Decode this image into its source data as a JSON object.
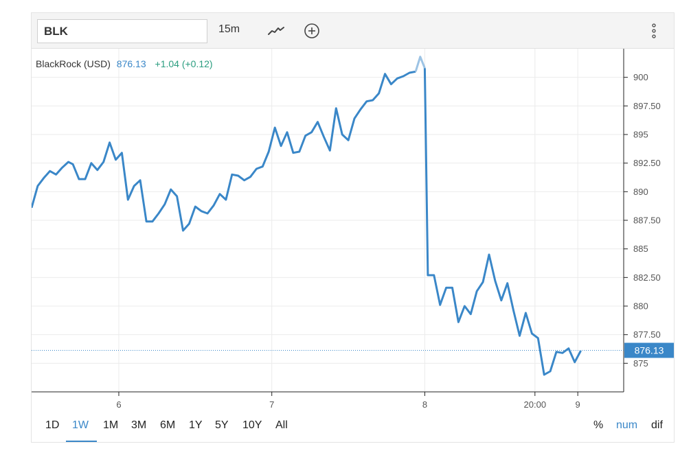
{
  "toolbar": {
    "symbol": "BLK",
    "interval": "15m",
    "line_icon": "line-chart-icon",
    "add_icon": "plus-circle-icon",
    "menu_icon": "vertical-ellipsis-icon"
  },
  "legend": {
    "name": "BlackRock (USD)",
    "price": "876.13",
    "change": "+1.04 (+0.12)"
  },
  "ranges": [
    "1D",
    "1W",
    "1M",
    "3M",
    "6M",
    "1Y",
    "5Y",
    "10Y",
    "All"
  ],
  "active_range": "1W",
  "modes": [
    "%",
    "num",
    "dif"
  ],
  "active_mode": "num",
  "colors": {
    "line": "#3a87c8",
    "line_faded": "#9cc3e4",
    "change_positive": "#2a9d7f",
    "price_tag_bg": "#3a87c8"
  },
  "chart_data": {
    "type": "line",
    "title": "",
    "xlabel": "",
    "ylabel": "",
    "ylim": [
      872.5,
      902.5
    ],
    "yticks": [
      875,
      877.5,
      880,
      882.5,
      885,
      887.5,
      890,
      892.5,
      895,
      897.5,
      900
    ],
    "ytick_labels": [
      "875",
      "877.50",
      "880",
      "882.50",
      "885",
      "887.50",
      "890",
      "892.50",
      "895",
      "897.50",
      "900"
    ],
    "xticks": [
      {
        "x": 6,
        "label": "6"
      },
      {
        "x": 7,
        "label": "7"
      },
      {
        "x": 8,
        "label": "8"
      },
      {
        "x": 8.72,
        "label": "20:00"
      },
      {
        "x": 9,
        "label": "9"
      }
    ],
    "xlim": [
      5.43,
      9.3
    ],
    "grid": true,
    "last_value": 876.13,
    "series": [
      {
        "values": [
          [
            5.43,
            888.6
          ],
          [
            5.47,
            890.5
          ],
          [
            5.51,
            891.2
          ],
          [
            5.55,
            891.8
          ],
          [
            5.59,
            891.5
          ],
          [
            5.63,
            892.1
          ],
          [
            5.67,
            892.6
          ],
          [
            5.7,
            892.4
          ],
          [
            5.74,
            891.1
          ],
          [
            5.78,
            891.1
          ],
          [
            5.82,
            892.5
          ],
          [
            5.86,
            891.9
          ],
          [
            5.9,
            892.6
          ],
          [
            5.94,
            894.3
          ],
          [
            5.98,
            892.8
          ],
          [
            6.02,
            893.4
          ],
          [
            6.06,
            889.3
          ],
          [
            6.1,
            890.5
          ],
          [
            6.14,
            891.0
          ],
          [
            6.18,
            887.4
          ],
          [
            6.22,
            887.4
          ],
          [
            6.26,
            888.1
          ],
          [
            6.3,
            888.9
          ],
          [
            6.34,
            890.2
          ],
          [
            6.38,
            889.6
          ],
          [
            6.42,
            886.6
          ],
          [
            6.46,
            887.2
          ],
          [
            6.5,
            888.7
          ],
          [
            6.54,
            888.3
          ],
          [
            6.58,
            888.1
          ],
          [
            6.62,
            888.8
          ],
          [
            6.66,
            889.8
          ],
          [
            6.7,
            889.3
          ],
          [
            6.74,
            891.5
          ],
          [
            6.78,
            891.4
          ],
          [
            6.82,
            891.0
          ],
          [
            6.86,
            891.3
          ],
          [
            6.9,
            892.0
          ],
          [
            6.94,
            892.2
          ],
          [
            6.98,
            893.5
          ],
          [
            7.02,
            895.6
          ],
          [
            7.06,
            894.0
          ],
          [
            7.1,
            895.2
          ],
          [
            7.14,
            893.4
          ],
          [
            7.18,
            893.5
          ],
          [
            7.22,
            894.9
          ],
          [
            7.26,
            895.2
          ],
          [
            7.3,
            896.1
          ],
          [
            7.34,
            894.8
          ],
          [
            7.38,
            893.6
          ],
          [
            7.42,
            897.3
          ],
          [
            7.46,
            895.0
          ],
          [
            7.5,
            894.5
          ],
          [
            7.54,
            896.4
          ],
          [
            7.58,
            897.2
          ],
          [
            7.62,
            897.9
          ],
          [
            7.66,
            898.0
          ],
          [
            7.7,
            898.6
          ],
          [
            7.74,
            900.3
          ],
          [
            7.78,
            899.4
          ],
          [
            7.82,
            899.9
          ],
          [
            7.86,
            900.1
          ],
          [
            7.9,
            900.4
          ],
          [
            7.94,
            900.5
          ],
          [
            7.97,
            901.8
          ],
          [
            8.0,
            900.8
          ],
          [
            8.02,
            882.7
          ],
          [
            8.06,
            882.7
          ],
          [
            8.1,
            880.1
          ],
          [
            8.14,
            881.6
          ],
          [
            8.18,
            881.6
          ],
          [
            8.22,
            878.6
          ],
          [
            8.26,
            880.0
          ],
          [
            8.3,
            879.3
          ],
          [
            8.34,
            881.3
          ],
          [
            8.38,
            882.1
          ],
          [
            8.42,
            884.5
          ],
          [
            8.46,
            882.2
          ],
          [
            8.5,
            880.5
          ],
          [
            8.54,
            882.0
          ],
          [
            8.58,
            879.6
          ],
          [
            8.62,
            877.4
          ],
          [
            8.66,
            879.4
          ],
          [
            8.7,
            877.6
          ],
          [
            8.74,
            877.2
          ],
          [
            8.78,
            874.0
          ],
          [
            8.82,
            874.3
          ],
          [
            8.86,
            876.0
          ],
          [
            8.9,
            875.9
          ],
          [
            8.94,
            876.3
          ],
          [
            8.98,
            875.1
          ],
          [
            9.02,
            876.1
          ]
        ]
      }
    ]
  }
}
